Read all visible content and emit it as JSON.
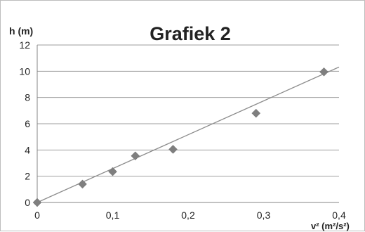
{
  "chart_data": {
    "type": "scatter",
    "title": "Grafiek 2",
    "ylabel": "h (m)",
    "xlabel": "v² (m²/s²)",
    "xlim": [
      0,
      0.4
    ],
    "ylim": [
      0,
      12
    ],
    "x_ticks": [
      "0",
      "0,1",
      "0,2",
      "0,3",
      "0,4"
    ],
    "y_ticks": [
      "0",
      "2",
      "4",
      "6",
      "8",
      "10",
      "12"
    ],
    "grid": "horizontal",
    "series": [
      {
        "marker": "diamond",
        "color": "#7f7f7f",
        "points": [
          {
            "x": 0,
            "y": 0
          },
          {
            "x": 0.06,
            "y": 1.4
          },
          {
            "x": 0.1,
            "y": 2.35
          },
          {
            "x": 0.13,
            "y": 3.55
          },
          {
            "x": 0.18,
            "y": 4.05
          },
          {
            "x": 0.29,
            "y": 6.8
          },
          {
            "x": 0.38,
            "y": 9.95
          }
        ]
      }
    ],
    "trendline": {
      "type": "linear",
      "color": "#8c8c8c",
      "slope": 25.8,
      "intercept": 0,
      "x_end": 0.4
    }
  }
}
